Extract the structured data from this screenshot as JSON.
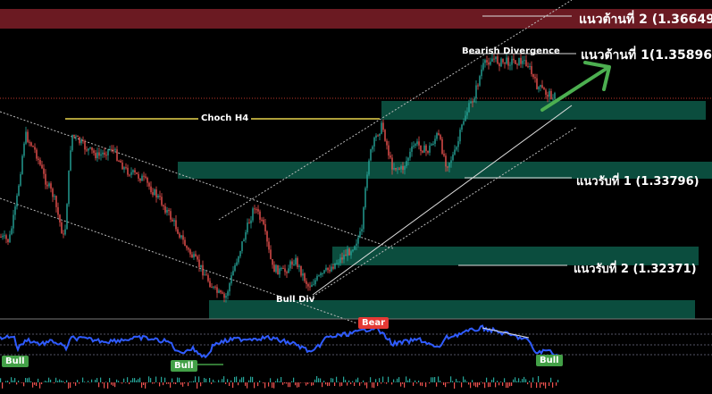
{
  "chart_data": {
    "type": "candlestick",
    "annotations": {
      "resistance_2": "แนวต้านที่ 2 (1.36649)",
      "resistance_1": "แนวต้านที่ 1(1.35896)",
      "support_1": "แนวรับที่ 1 (1.33796)",
      "support_2": "แนวรับที่ 2 (1.32371)",
      "choch": "Choch H4",
      "bearish_div": "Bearish Divergence",
      "bull_div": "Bull Div"
    },
    "levels": {
      "resistance_2": 1.36649,
      "resistance_1": 1.35896,
      "support_1": 1.33796,
      "support_2": 1.32371
    },
    "indicator_badges": [
      "Bull",
      "Bull",
      "Bear",
      "Bull"
    ],
    "colors": {
      "background": "#000000",
      "bull_candle": "#26a69a",
      "bear_candle": "#ef5350",
      "zone_fill": "#0b4d3e",
      "resistance_band": "#6b1a22",
      "choch_line": "#e8d44d",
      "oscillator": "#2962ff",
      "arrow": "#4caf50",
      "bear_badge": "#e53935",
      "bull_badge": "#43a047"
    }
  }
}
